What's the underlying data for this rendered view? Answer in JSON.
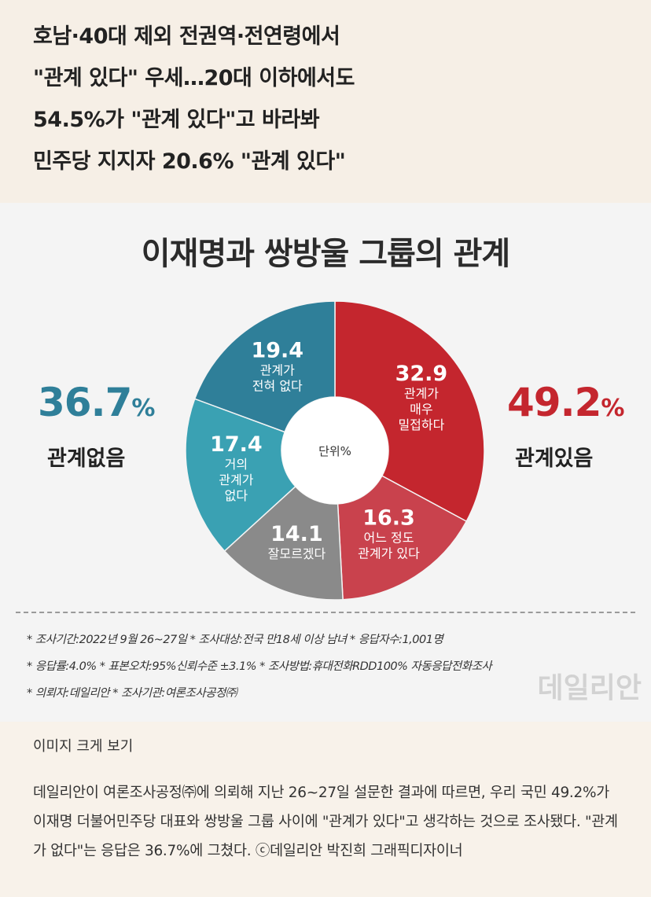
{
  "headline": {
    "lines": [
      "호남·40대 제외 전권역·전연령에서",
      "\"관계 있다\" 우세…20대 이하에서도",
      "54.5%가 \"관계 있다\"고 바라봐",
      "민주당 지지자 20.6% \"관계 있다\""
    ]
  },
  "chart_data": {
    "type": "pie",
    "title": "이재명과 쌍방울 그룹의 관계",
    "center_label": "단위%",
    "slices": [
      {
        "value": 32.9,
        "label": [
          "관계가",
          "매우",
          "밀접하다"
        ],
        "color": "#c4262e"
      },
      {
        "value": 16.3,
        "label": [
          "어느 정도",
          "관계가 있다"
        ],
        "color": "#c9424d"
      },
      {
        "value": 14.1,
        "label": [
          "잘모르겠다"
        ],
        "color": "#8a8a8a"
      },
      {
        "value": 17.4,
        "label": [
          "거의",
          "관계가",
          "없다"
        ],
        "color": "#3aa1b3"
      },
      {
        "value": 19.4,
        "label": [
          "관계가",
          "전혀 없다"
        ],
        "color": "#2f7f99"
      }
    ],
    "summary_left": {
      "value": "36.7",
      "unit": "%",
      "label": "관계없음",
      "color": "#2f7f99"
    },
    "summary_right": {
      "value": "49.2",
      "unit": "%",
      "label": "관계있음",
      "color": "#c4262e"
    }
  },
  "notes": [
    "* 조사기간:2022년 9월 26~27일  * 조사대상:전국 만18세 이상 남녀  * 응답자수:1,001명",
    "* 응답률:4.0%  * 표본오차:95%신뢰수준 ±3.1%  * 조사방법:휴대전화RDD100% 자동응답전화조사",
    "* 의뢰자:데일리안  * 조사기관:여론조사공정㈜"
  ],
  "watermark": "데일리안",
  "view_large": "이미지 크게 보기",
  "caption": "데일리안이 여론조사공정㈜에 의뢰해 지난 26~27일 설문한 결과에 따르면, 우리 국민 49.2%가 이재명 더불어민주당 대표와 쌍방울 그룹 사이에 \"관계가 있다\"고 생각하는 것으로 조사됐다. \"관계가 없다\"는 응답은 36.7%에 그쳤다. ⓒ데일리안 박진희 그래픽디자이너"
}
